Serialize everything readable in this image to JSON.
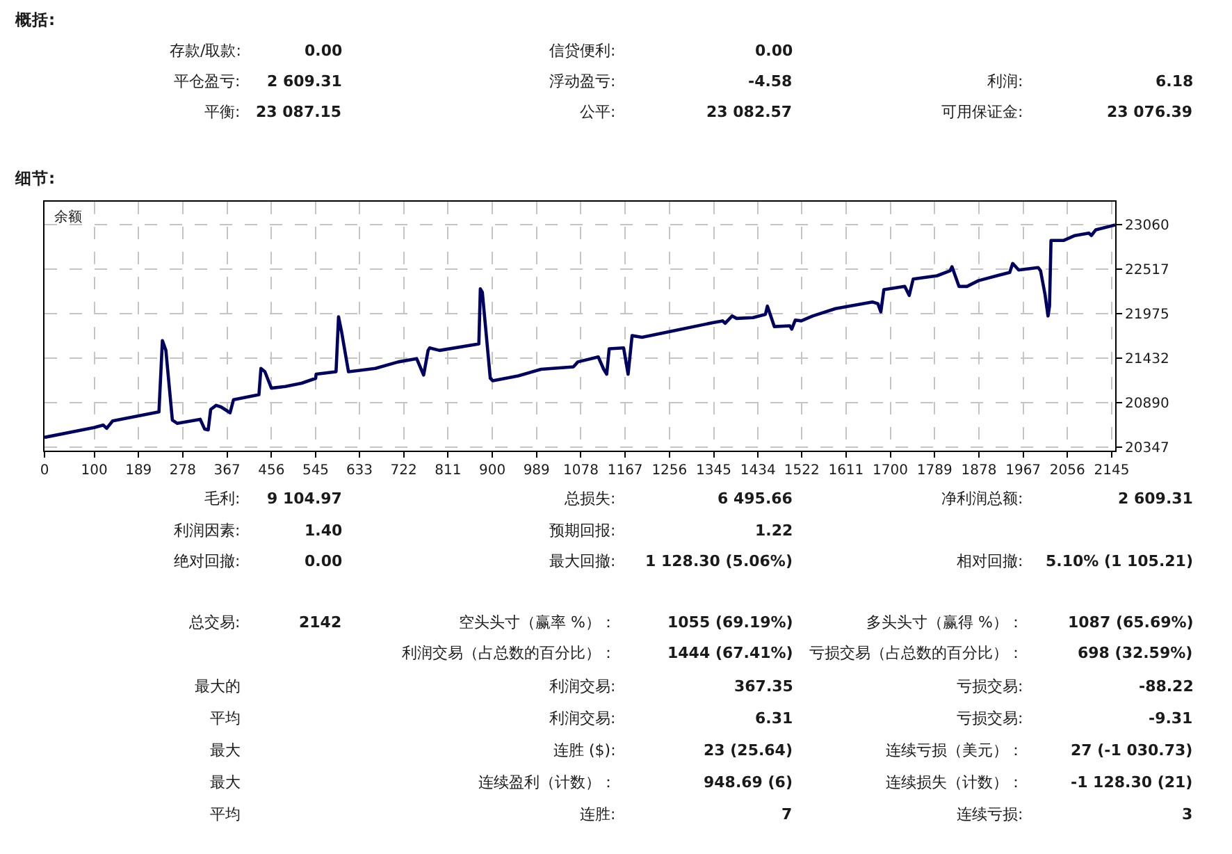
{
  "chart_data": [
    {
      "type": "other",
      "title": "概括:",
      "annotations": [
        "存款/取款:",
        "0.00",
        "信贷便利:",
        "0.00",
        "平仓盈亏:",
        "2 609.31",
        "浮动盈亏:",
        "-4.58",
        "利润:",
        "6.18",
        "平衡:",
        "23 087.15",
        "公平:",
        "23 082.57",
        "可用保证金:",
        "23 076.39"
      ]
    },
    {
      "type": "line",
      "title": "细节:",
      "annotations": [
        "余额"
      ],
      "color": "#000060",
      "x": [
        0,
        100,
        118,
        125,
        137,
        230,
        237,
        244,
        257,
        267,
        313,
        322,
        329,
        334,
        345,
        355,
        373,
        380,
        431,
        435,
        443,
        456,
        484,
        517,
        545,
        546,
        586,
        591,
        597,
        611,
        665,
        711,
        748,
        762,
        771,
        774,
        794,
        873,
        876,
        880,
        896,
        901,
        952,
        998,
        1063,
        1072,
        1113,
        1124,
        1130,
        1135,
        1164,
        1173,
        1181,
        1201,
        1257,
        1345,
        1363,
        1368,
        1382,
        1391,
        1424,
        1449,
        1453,
        1467,
        1498,
        1502,
        1509,
        1521,
        1544,
        1590,
        1664,
        1675,
        1681,
        1687,
        1729,
        1738,
        1746,
        1794,
        1820,
        1824,
        1838,
        1854,
        1877,
        1914,
        1940,
        1946,
        1958,
        1997,
        2002,
        2011,
        2017,
        2020,
        2023,
        2048,
        2071,
        2099,
        2104,
        2113,
        2152
      ],
      "values": [
        20470,
        20590,
        20620,
        20580,
        20670,
        20780,
        21650,
        21530,
        20680,
        20640,
        20690,
        20570,
        20560,
        20810,
        20860,
        20840,
        20770,
        20930,
        20990,
        21310,
        21270,
        21070,
        21090,
        21130,
        21190,
        21240,
        21270,
        21940,
        21760,
        21270,
        21310,
        21390,
        21430,
        21230,
        21530,
        21560,
        21530,
        21610,
        22280,
        22240,
        21190,
        21160,
        21220,
        21300,
        21330,
        21390,
        21450,
        21300,
        21240,
        21550,
        21560,
        21240,
        21710,
        21690,
        21760,
        21870,
        21890,
        21860,
        21950,
        21920,
        21930,
        21970,
        22070,
        21820,
        21830,
        21790,
        21900,
        21890,
        21950,
        22040,
        22120,
        22100,
        22000,
        22270,
        22310,
        22200,
        22400,
        22440,
        22500,
        22550,
        22310,
        22310,
        22380,
        22440,
        22480,
        22590,
        22510,
        22540,
        22500,
        22210,
        21950,
        22070,
        22870,
        22870,
        22930,
        22960,
        22930,
        23000,
        23060
      ],
      "xlim": [
        0,
        2152
      ],
      "xticks": [
        0,
        100,
        189,
        278,
        367,
        456,
        545,
        633,
        722,
        811,
        900,
        989,
        1078,
        1167,
        1256,
        1345,
        1434,
        1522,
        1611,
        1700,
        1789,
        1878,
        1967,
        2056,
        2145
      ],
      "ylim": [
        20308,
        23343
      ],
      "yticks": [
        20347,
        20890,
        21432,
        21975,
        22517,
        23060
      ],
      "grid": true
    },
    {
      "type": "other",
      "annotations": [
        "毛利:",
        "9 104.97",
        "总损失:",
        "6 495.66",
        "净利润总额:",
        "2 609.31",
        "利润因素:",
        "1.40",
        "预期回报:",
        "1.22",
        "绝对回撤:",
        "0.00",
        "最大回撤:",
        "1 128.30 (5.06%)",
        "相对回撤:",
        "5.10% (1 105.21)",
        "总交易:",
        "2142",
        "空头头寸（赢率 %）：",
        "1055 (69.19%)",
        "多头头寸（赢得 %）：",
        "1087 (65.69%)",
        "利润交易（占总数的百分比）：",
        "1444 (67.41%)",
        "亏损交易（占总数的百分比）：",
        "698 (32.59%)",
        "最大的",
        "利润交易:",
        "367.35",
        "亏损交易:",
        "-88.22",
        "平均",
        "利润交易:",
        "6.31",
        "亏损交易:",
        "-9.31",
        "最大",
        "连胜 ($):",
        "23 (25.64)",
        "连续亏损（美元）：",
        "27 (-1 030.73)",
        "最大",
        "连续盈利（计数）：",
        "948.69 (6)",
        "连续损失（计数）：",
        "-1 128.30 (21)",
        "平均",
        "连胜:",
        "7",
        "连续亏损:",
        "3"
      ]
    }
  ]
}
